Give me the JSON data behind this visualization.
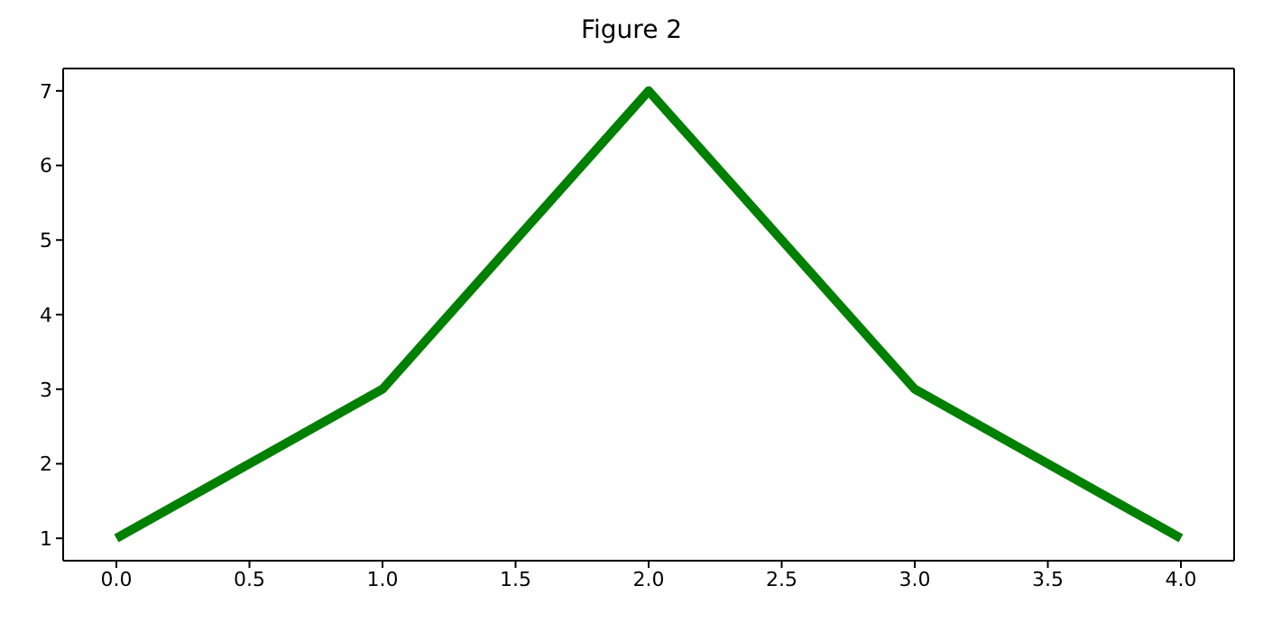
{
  "chart_data": {
    "type": "line",
    "title": "Figure 2",
    "x": [
      0,
      1,
      2,
      3,
      4
    ],
    "series": [
      {
        "color": "#008000",
        "values": [
          1,
          3,
          7,
          3,
          1
        ]
      }
    ],
    "xlim": [
      -0.2,
      4.2
    ],
    "xticks": [
      {
        "value": 0,
        "label": "0.0"
      },
      {
        "value": 0.5,
        "label": "0.5"
      },
      {
        "value": 1,
        "label": "1.0"
      },
      {
        "value": 1.5,
        "label": "1.5"
      },
      {
        "value": 2,
        "label": "2.0"
      },
      {
        "value": 2.5,
        "label": "2.5"
      },
      {
        "value": 3,
        "label": "3.0"
      },
      {
        "value": 3.5,
        "label": "3.5"
      },
      {
        "value": 4,
        "label": "4.0"
      }
    ],
    "ylim": [
      0.7,
      7.3
    ],
    "yticks": [
      1,
      2,
      3,
      4,
      5,
      6,
      7
    ],
    "grid": false,
    "legend": false,
    "marker": "none",
    "line_style": "solid"
  }
}
